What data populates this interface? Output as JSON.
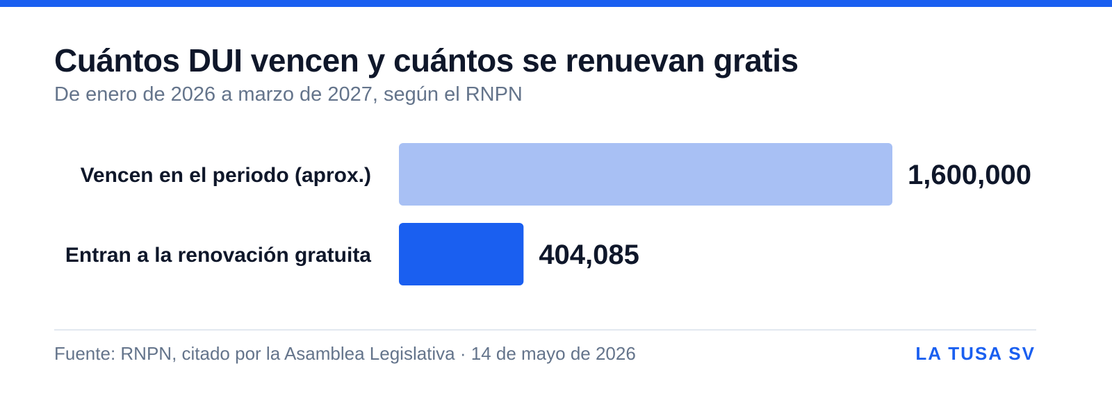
{
  "header": {
    "title": "Cuántos DUI vencen y cuántos se renuevan gratis",
    "subtitle": "De enero de 2026 a marzo de 2027, según el RNPN"
  },
  "footer": {
    "source": "Fuente: RNPN, citado por la Asamblea Legislativa · 14 de mayo de 2026",
    "brand": "LA TUSA SV"
  },
  "colors": {
    "accent": "#1a5ff0",
    "bar_light": "#a8c0f4",
    "bar_dark": "#1a5ff0",
    "text_dark": "#0f172a",
    "text_muted": "#64748b"
  },
  "chart_data": {
    "type": "bar",
    "orientation": "horizontal",
    "categories": [
      "Vencen en el periodo (aprox.)",
      "Entran a la renovación gratuita"
    ],
    "values": [
      1600000,
      404085
    ],
    "value_labels": [
      "1,600,000",
      "404,085"
    ],
    "bar_colors": [
      "#a8c0f4",
      "#1a5ff0"
    ],
    "title": "Cuántos DUI vencen y cuántos se renuevan gratis",
    "subtitle": "De enero de 2026 a marzo de 2027, según el RNPN",
    "xlabel": "",
    "ylabel": "",
    "xlim": [
      0,
      1600000
    ],
    "grid": false,
    "legend": "none"
  }
}
